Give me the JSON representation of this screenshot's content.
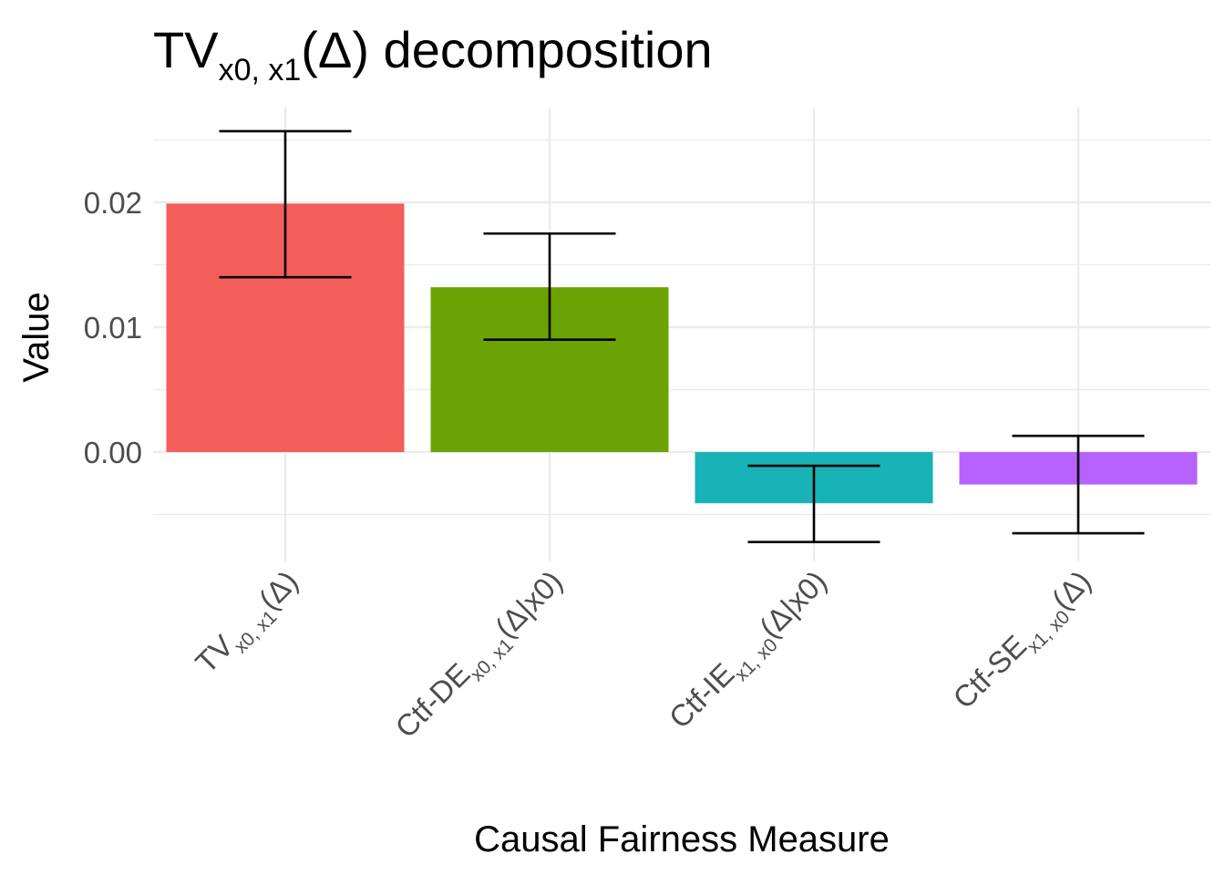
{
  "chart_data": {
    "type": "bar",
    "title": {
      "main": "TV",
      "sub": "x0, x1",
      "paren": "(Δ)",
      "rest": " decomposition"
    },
    "xlabel": "Causal Fairness Measure",
    "ylabel": "Value",
    "ylim": [
      -0.0088,
      0.0275
    ],
    "yticks": [
      0.0,
      0.01,
      0.02
    ],
    "ytick_labels": [
      "0.00",
      "0.01",
      "0.02"
    ],
    "y_minor_ticks": [
      -0.005,
      0.005,
      0.015,
      0.025
    ],
    "grid": true,
    "legend": "none",
    "categories": [
      {
        "main": "TV",
        "sub": "x0, x1",
        "rest": "(Δ)"
      },
      {
        "main": "Ctf-DE",
        "sub": "x0, x1",
        "rest": "(Δ|x0)"
      },
      {
        "main": "Ctf-IE",
        "sub": "x1, x0",
        "rest": "(Δ|x0)"
      },
      {
        "main": "Ctf-SE",
        "sub": "x1, x0",
        "rest": "(Δ)"
      }
    ],
    "values": [
      0.0199,
      0.0132,
      -0.0041,
      -0.0026
    ],
    "error_lower": [
      0.014,
      0.009,
      -0.0072,
      -0.0065
    ],
    "error_upper": [
      0.0257,
      0.0175,
      -0.0011,
      0.0013
    ],
    "colors": [
      "#F8766D",
      "#7CAE00",
      "#00BFC4",
      "#C77CFF"
    ],
    "colors_rendered": [
      "#F35E5A",
      "#6BA204",
      "#18B3B7",
      "#B762FF"
    ]
  }
}
